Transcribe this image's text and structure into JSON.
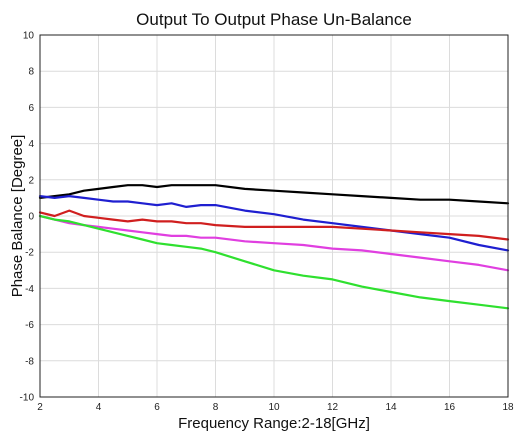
{
  "chart_data": {
    "type": "line",
    "title": "Output To Output Phase Un-Balance",
    "xlabel": "Frequency Range:2-18[GHz]",
    "ylabel": "Phase Balance [Degree]",
    "xlim": [
      2,
      18
    ],
    "ylim": [
      -10,
      10
    ],
    "xticks": [
      2,
      4,
      6,
      8,
      10,
      12,
      14,
      16,
      18
    ],
    "yticks": [
      -10,
      -8,
      -6,
      -4,
      -2,
      0,
      2,
      4,
      6,
      8,
      10
    ],
    "grid": true,
    "series": [
      {
        "color": "#000000",
        "x": [
          2,
          2.5,
          3,
          3.5,
          4,
          4.5,
          5,
          5.5,
          6,
          6.5,
          7,
          7.5,
          8,
          9,
          10,
          11,
          12,
          13,
          14,
          15,
          16,
          17,
          18
        ],
        "y": [
          1.0,
          1.1,
          1.2,
          1.4,
          1.5,
          1.6,
          1.7,
          1.7,
          1.6,
          1.7,
          1.7,
          1.7,
          1.7,
          1.5,
          1.4,
          1.3,
          1.2,
          1.1,
          1.0,
          0.9,
          0.9,
          0.8,
          0.7
        ]
      },
      {
        "color": "#1f1fd0",
        "x": [
          2,
          2.5,
          3,
          3.5,
          4,
          4.5,
          5,
          5.5,
          6,
          6.5,
          7,
          7.5,
          8,
          9,
          10,
          11,
          12,
          13,
          14,
          15,
          16,
          17,
          18
        ],
        "y": [
          1.1,
          1.0,
          1.1,
          1.0,
          0.9,
          0.8,
          0.8,
          0.7,
          0.6,
          0.7,
          0.5,
          0.6,
          0.6,
          0.3,
          0.1,
          -0.2,
          -0.4,
          -0.6,
          -0.8,
          -1.0,
          -1.2,
          -1.6,
          -1.9
        ]
      },
      {
        "color": "#d01f1f",
        "x": [
          2,
          2.5,
          3,
          3.5,
          4,
          4.5,
          5,
          5.5,
          6,
          6.5,
          7,
          7.5,
          8,
          9,
          10,
          11,
          12,
          13,
          14,
          15,
          16,
          17,
          18
        ],
        "y": [
          0.2,
          0.0,
          0.3,
          0.0,
          -0.1,
          -0.2,
          -0.3,
          -0.2,
          -0.3,
          -0.3,
          -0.4,
          -0.4,
          -0.5,
          -0.6,
          -0.6,
          -0.6,
          -0.6,
          -0.7,
          -0.8,
          -0.9,
          -1.0,
          -1.1,
          -1.3
        ]
      },
      {
        "color": "#e03fe0",
        "x": [
          2,
          2.5,
          3,
          3.5,
          4,
          4.5,
          5,
          5.5,
          6,
          6.5,
          7,
          7.5,
          8,
          9,
          10,
          11,
          12,
          13,
          14,
          15,
          16,
          17,
          18
        ],
        "y": [
          0.0,
          -0.2,
          -0.4,
          -0.5,
          -0.6,
          -0.7,
          -0.8,
          -0.9,
          -1.0,
          -1.1,
          -1.1,
          -1.2,
          -1.2,
          -1.4,
          -1.5,
          -1.6,
          -1.8,
          -1.9,
          -2.1,
          -2.3,
          -2.5,
          -2.7,
          -3.0
        ]
      },
      {
        "color": "#2fe02f",
        "x": [
          2,
          2.5,
          3,
          3.5,
          4,
          4.5,
          5,
          5.5,
          6,
          6.5,
          7,
          7.5,
          8,
          9,
          10,
          11,
          12,
          13,
          14,
          15,
          16,
          17,
          18
        ],
        "y": [
          0.0,
          -0.2,
          -0.3,
          -0.5,
          -0.7,
          -0.9,
          -1.1,
          -1.3,
          -1.5,
          -1.6,
          -1.7,
          -1.8,
          -2.0,
          -2.5,
          -3.0,
          -3.3,
          -3.5,
          -3.9,
          -4.2,
          -4.5,
          -4.7,
          -4.9,
          -5.1
        ]
      }
    ]
  }
}
